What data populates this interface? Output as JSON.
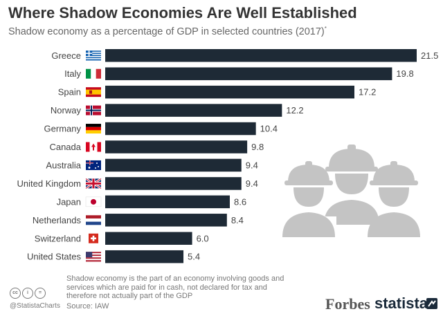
{
  "header": {
    "title": "Where Shadow Economies Are Well Established",
    "subtitle": "Shadow economy as a percentage of GDP in selected countries (2017)",
    "subtitle_mark": "*"
  },
  "chart_data": {
    "type": "bar",
    "orientation": "horizontal",
    "title": "Where Shadow Economies Are Well Established",
    "subtitle": "Shadow economy as a percentage of GDP in selected countries (2017)",
    "categories": [
      "Greece",
      "Italy",
      "Spain",
      "Norway",
      "Germany",
      "Canada",
      "Australia",
      "United Kingdom",
      "Japan",
      "Netherlands",
      "Switzerland",
      "United States"
    ],
    "values": [
      21.5,
      19.8,
      17.2,
      12.2,
      10.4,
      9.8,
      9.4,
      9.4,
      8.6,
      8.4,
      6.0,
      5.4
    ],
    "value_labels": [
      "21.5",
      "19.8",
      "17.2",
      "12.2",
      "10.4",
      "9.8",
      "9.4",
      "9.4",
      "8.6",
      "8.4",
      "6.0",
      "5.4"
    ],
    "xlim": [
      0,
      21.5
    ],
    "grid": false,
    "bar_color": "#1e2a36"
  },
  "flags": [
    "greece-flag",
    "italy-flag",
    "spain-flag",
    "norway-flag",
    "germany-flag",
    "canada-flag",
    "australia-flag",
    "uk-flag",
    "japan-flag",
    "netherlands-flag",
    "switzerland-flag",
    "usa-flag"
  ],
  "footer": {
    "footnote": "Shadow economy is the part of an economy involving goods and services which are paid for in cash, not declared for tax and therefore not actually part of the GDP",
    "source": "Source: IAW",
    "handle": "@StatistaCharts",
    "forbes": "Forbes",
    "statista": "statista",
    "license_icons": [
      "cc",
      "i",
      "="
    ]
  },
  "colors": {
    "bar": "#1e2a36",
    "icon_gray": "#c4c4c4"
  }
}
